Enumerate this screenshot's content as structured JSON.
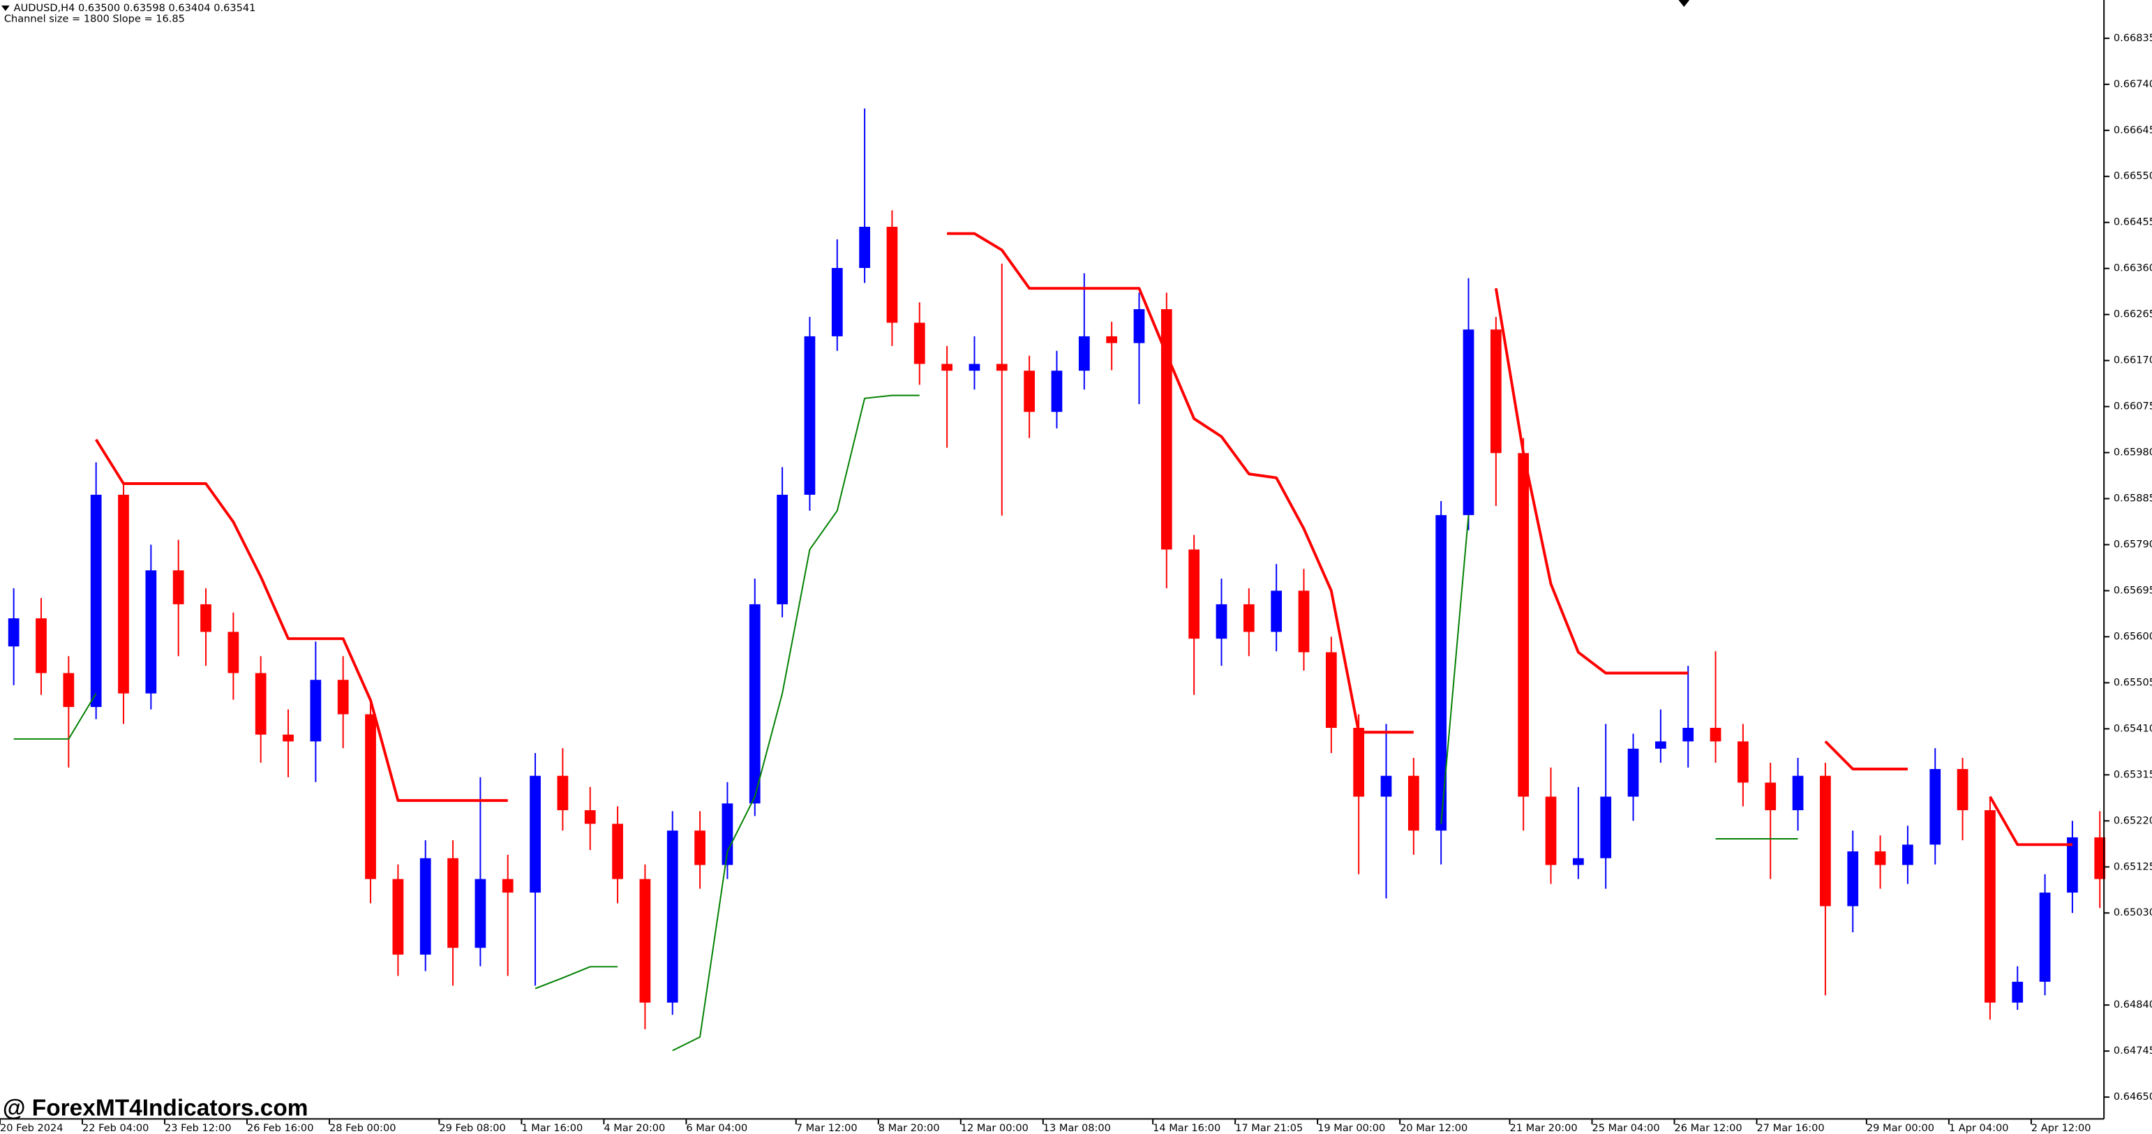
{
  "chart_data": {
    "type": "candlestick",
    "title": "AUDUSD,H4  0.63500 0.63598 0.63404 0.63541",
    "subtitle": "Channel size = 1800 Slope = 16.85",
    "watermark": "@ ForexMT4Indicators.com",
    "up_color": "#0000ff",
    "down_color": "#ff0000",
    "grid": false,
    "ylim": [
      0.64605,
      0.66914
    ],
    "yticks": [
      0.66835,
      {
        "value": 0.6674,
        "label": "0.66740"
      },
      0.66645,
      {
        "value": 0.6655,
        "label": "0.66550"
      },
      0.66455,
      {
        "value": 0.6636,
        "label": "0.66360"
      },
      0.66265,
      {
        "value": 0.6617,
        "label": "0.66170"
      },
      0.66075,
      {
        "value": 0.6598,
        "label": "0.65980"
      },
      0.65885,
      {
        "value": 0.6579,
        "label": "0.65790"
      },
      0.65695,
      {
        "value": 0.656,
        "label": "0.65600"
      },
      0.65505,
      {
        "value": 0.6541,
        "label": "0.65410"
      },
      0.65315,
      {
        "value": 0.6522,
        "label": "0.65220"
      },
      0.65125,
      {
        "value": 0.6503,
        "label": "0.65030"
      },
      {
        "value": 0.6484,
        "label": "0.64840"
      },
      0.64745,
      {
        "value": 0.6465,
        "label": "0.64650"
      }
    ],
    "categories": [
      "20 Feb 2024",
      null,
      null,
      "22 Feb 04:00",
      null,
      null,
      "23 Feb 12:00",
      null,
      null,
      "26 Feb 16:00",
      null,
      null,
      "28 Feb 00:00",
      null,
      null,
      null,
      "29 Feb 08:00",
      null,
      null,
      "1 Mar 16:00",
      null,
      null,
      "4 Mar 20:00",
      null,
      null,
      "6 Mar 04:00",
      null,
      null,
      null,
      "7 Mar 12:00",
      null,
      null,
      "8 Mar 20:00",
      null,
      null,
      "12 Mar 00:00",
      null,
      null,
      "13 Mar 08:00",
      null,
      null,
      null,
      "14 Mar 16:00",
      null,
      null,
      "17 Mar 21:05",
      null,
      null,
      "19 Mar 00:00",
      null,
      null,
      "20 Mar 12:00",
      null,
      null,
      null,
      "21 Mar 20:00",
      null,
      null,
      "25 Mar 04:00",
      null,
      null,
      "26 Mar 12:00",
      null,
      null,
      "27 Mar 16:00",
      null,
      null,
      null,
      "29 Mar 00:00",
      null,
      null,
      "1 Apr 04:00",
      null,
      null,
      "2 Apr 12:00",
      null,
      null
    ],
    "open": [
      0.6558,
      0.65638,
      0.65525,
      0.65455,
      0.65893,
      0.65483,
      0.65737,
      0.65667,
      0.6561,
      0.65525,
      0.65398,
      0.65384,
      0.65511,
      0.6544,
      0.651,
      0.64944,
      0.65143,
      0.64958,
      0.651,
      0.65072,
      0.65313,
      0.65242,
      0.65214,
      0.651,
      0.64845,
      0.652,
      0.65129,
      0.65256,
      0.65667,
      0.65893,
      0.6622,
      0.66361,
      0.66446,
      0.66248,
      0.66163,
      0.66149,
      0.66163,
      0.66149,
      0.66064,
      0.66149,
      0.6622,
      0.66206,
      0.66276,
      0.6578,
      0.65596,
      0.65667,
      0.6561,
      0.65695,
      0.65568,
      0.65412,
      0.6527,
      0.65313,
      0.652,
      0.65851,
      0.66234,
      0.65979,
      0.6527,
      0.65129,
      0.65143,
      0.6527,
      0.65369,
      0.65384,
      0.65412,
      0.65384,
      0.65299,
      0.65242,
      0.65313,
      0.65044,
      0.65157,
      0.65129,
      0.65171,
      0.65327,
      0.65242,
      0.64845,
      0.64888,
      0.65072,
      0.65186
    ],
    "high": [
      0.657,
      0.6568,
      0.6556,
      0.6596,
      0.6592,
      0.6579,
      0.658,
      0.657,
      0.6565,
      0.6556,
      0.6545,
      0.6559,
      0.6556,
      0.6547,
      0.6513,
      0.6518,
      0.6518,
      0.6531,
      0.6515,
      0.6536,
      0.6537,
      0.6529,
      0.6525,
      0.6513,
      0.6524,
      0.6524,
      0.653,
      0.6572,
      0.6595,
      0.6626,
      0.6642,
      0.6669,
      0.6648,
      0.6629,
      0.662,
      0.6622,
      0.6637,
      0.6618,
      0.6619,
      0.6635,
      0.6625,
      0.6631,
      0.6631,
      0.6581,
      0.6572,
      0.657,
      0.6575,
      0.6574,
      0.656,
      0.6544,
      0.6542,
      0.6535,
      0.6588,
      0.6634,
      0.6626,
      0.6601,
      0.6533,
      0.6529,
      0.6542,
      0.654,
      0.6545,
      0.6554,
      0.6557,
      0.6542,
      0.6534,
      0.6535,
      0.6534,
      0.652,
      0.6519,
      0.6521,
      0.6537,
      0.6535,
      0.6527,
      0.6492,
      0.6511,
      0.6522,
      0.6524
    ],
    "low": [
      0.655,
      0.6548,
      0.6533,
      0.6543,
      0.6542,
      0.6545,
      0.6556,
      0.6554,
      0.6547,
      0.6534,
      0.6531,
      0.653,
      0.6537,
      0.6505,
      0.649,
      0.6491,
      0.6488,
      0.6492,
      0.649,
      0.6488,
      0.652,
      0.6516,
      0.6505,
      0.6479,
      0.6482,
      0.6508,
      0.651,
      0.6523,
      0.6564,
      0.6586,
      0.6619,
      0.6633,
      0.662,
      0.6612,
      0.6599,
      0.6611,
      0.6585,
      0.6601,
      0.6603,
      0.6611,
      0.6615,
      0.6608,
      0.657,
      0.6548,
      0.6554,
      0.6556,
      0.6557,
      0.6553,
      0.6536,
      0.6511,
      0.6506,
      0.6515,
      0.6513,
      0.6582,
      0.6587,
      0.652,
      0.6509,
      0.651,
      0.6508,
      0.6522,
      0.6534,
      0.6533,
      0.6534,
      0.6525,
      0.651,
      0.652,
      0.6486,
      0.6499,
      0.6508,
      0.6509,
      0.6513,
      0.6518,
      0.6481,
      0.6483,
      0.6486,
      0.6503,
      0.6504
    ],
    "close": [
      0.65638,
      0.65525,
      0.65455,
      0.65893,
      0.65483,
      0.65737,
      0.65667,
      0.6561,
      0.65525,
      0.65398,
      0.65384,
      0.65511,
      0.6544,
      0.651,
      0.64944,
      0.65143,
      0.64958,
      0.651,
      0.65072,
      0.65313,
      0.65242,
      0.65214,
      0.651,
      0.64845,
      0.652,
      0.65129,
      0.65256,
      0.65667,
      0.65893,
      0.6622,
      0.66361,
      0.66446,
      0.66248,
      0.66163,
      0.66149,
      0.66163,
      0.66149,
      0.66064,
      0.66149,
      0.6622,
      0.66206,
      0.66276,
      0.6578,
      0.65596,
      0.65667,
      0.6561,
      0.65695,
      0.65568,
      0.65412,
      0.6527,
      0.65313,
      0.652,
      0.65851,
      0.66234,
      0.65979,
      0.6527,
      0.65129,
      0.65143,
      0.6527,
      0.65369,
      0.65384,
      0.65412,
      0.65384,
      0.65299,
      0.65242,
      0.65313,
      0.65044,
      0.65157,
      0.65129,
      0.65171,
      0.65327,
      0.65242,
      0.64845,
      0.64888,
      0.65072,
      0.65186,
      0.651
    ],
    "overlays": [
      {
        "color": "#ff0000",
        "width": 2,
        "values": [
          null,
          null,
          null,
          0.66007,
          0.65916,
          0.65916,
          0.65916,
          0.65916,
          0.65837,
          0.65724,
          0.65596,
          0.65596,
          0.65596,
          0.65469,
          0.65262,
          0.65262,
          0.65262,
          0.65262,
          0.65262,
          null,
          null,
          null,
          null,
          null,
          null,
          null,
          null,
          null,
          null,
          null,
          null,
          null,
          null,
          null,
          0.66432,
          0.66432,
          0.66398,
          0.66319,
          0.66319,
          0.66319,
          0.66319,
          0.66319,
          0.66183,
          0.6605,
          0.66013,
          0.65936,
          0.65928,
          0.65823,
          0.65695,
          0.65403,
          0.65403,
          0.65403,
          null,
          null,
          0.66319,
          0.65979,
          0.65709,
          0.65568,
          0.65525,
          0.65525,
          0.65525,
          0.65525,
          null,
          null,
          null,
          null,
          0.65384,
          0.65327,
          0.65327,
          0.65327,
          null,
          null,
          0.6527,
          0.65171,
          0.65171,
          0.65171,
          null
        ]
      },
      {
        "color": "#008000",
        "width": 1,
        "values": [
          0.65389,
          0.65389,
          0.65389,
          0.65483,
          null,
          null,
          null,
          null,
          null,
          null,
          null,
          null,
          null,
          null,
          null,
          null,
          null,
          null,
          null,
          0.64874,
          0.64896,
          0.64919,
          0.64919,
          null,
          0.64746,
          0.64774,
          0.65157,
          0.6527,
          0.65483,
          0.6578,
          0.6586,
          0.66092,
          0.66098,
          0.66098,
          null,
          null,
          null,
          null,
          null,
          null,
          null,
          null,
          null,
          null,
          null,
          null,
          null,
          null,
          null,
          null,
          null,
          null,
          0.65214,
          0.65851,
          null,
          null,
          null,
          null,
          null,
          null,
          null,
          null,
          0.65183,
          0.65183,
          0.65183,
          0.65183,
          null,
          null,
          null,
          null,
          null,
          null,
          null,
          null,
          null,
          null,
          null
        ]
      }
    ]
  }
}
